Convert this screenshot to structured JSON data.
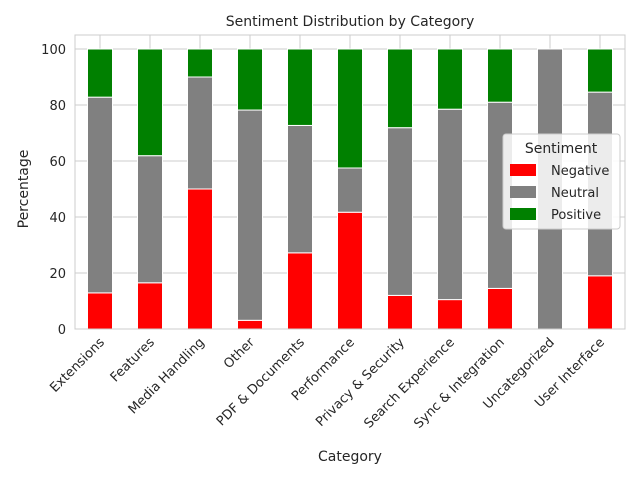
{
  "chart_data": {
    "type": "bar",
    "stacked": true,
    "title": "Sentiment Distribution by Category",
    "xlabel": "Category",
    "ylabel": "Percentage",
    "ylim": [
      0,
      105
    ],
    "yticks": [
      0,
      20,
      40,
      60,
      80,
      100
    ],
    "grid": true,
    "legend": {
      "title": "Sentiment",
      "placement": "right"
    },
    "categories": [
      "Extensions",
      "Features",
      "Media Handling",
      "Other",
      "PDF & Documents",
      "Performance",
      "Privacy & Security",
      "Search Experience",
      "Sync & Integration",
      "Uncategorized",
      "User Interface"
    ],
    "series": [
      {
        "name": "Negative",
        "color": "#ff0000",
        "values": [
          12.9,
          16.5,
          50.0,
          3.1,
          27.2,
          41.7,
          12.0,
          10.5,
          14.5,
          0.0,
          19.0
        ]
      },
      {
        "name": "Neutral",
        "color": "#808080",
        "values": [
          69.9,
          45.4,
          40.0,
          75.1,
          45.5,
          15.8,
          59.9,
          68.0,
          66.5,
          100.0,
          65.6
        ]
      },
      {
        "name": "Positive",
        "color": "#008000",
        "values": [
          17.2,
          38.1,
          10.0,
          21.8,
          27.3,
          42.5,
          28.1,
          21.5,
          19.0,
          0.0,
          15.4
        ]
      }
    ]
  }
}
